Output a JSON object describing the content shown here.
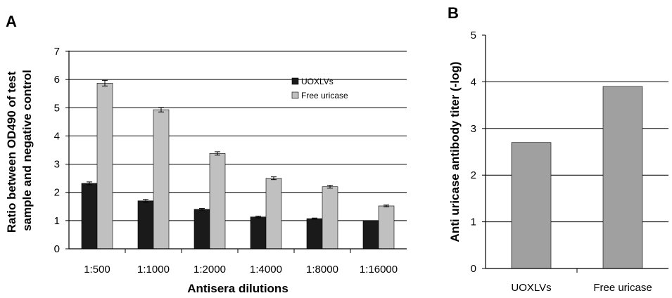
{
  "chart_data": [
    {
      "panel": "A",
      "type": "bar",
      "categories": [
        "1:500",
        "1:1000",
        "1:2000",
        "1:4000",
        "1:8000",
        "1:16000"
      ],
      "series": [
        {
          "name": "UOXLVs",
          "color": "#1a1a1a",
          "values": [
            2.32,
            1.7,
            1.4,
            1.13,
            1.07,
            1.0
          ],
          "errors": [
            0.05,
            0.05,
            0.03,
            0.03,
            0.02,
            0.0
          ]
        },
        {
          "name": "Free uricase",
          "color": "#c0c0c0",
          "values": [
            5.87,
            4.93,
            3.38,
            2.5,
            2.2,
            1.52
          ],
          "errors": [
            0.1,
            0.08,
            0.06,
            0.05,
            0.05,
            0.03
          ]
        }
      ],
      "xlabel": "Antisera dilutions",
      "ylabel": [
        "Ratio between OD490 of test",
        "sample and negative control"
      ],
      "ylim": [
        0,
        7
      ],
      "yticks": [
        "0",
        "1",
        "2",
        "3",
        "4",
        "5",
        "6",
        "7"
      ],
      "grid": true,
      "legend": "top-right"
    },
    {
      "panel": "B",
      "type": "bar",
      "categories": [
        "UOXLVs",
        "Free uricase"
      ],
      "values": [
        2.7,
        3.9
      ],
      "color": "#a0a0a0",
      "ylabel": "Anti uricase antibody titer (-log)",
      "ylim": [
        0,
        5
      ],
      "yticks": [
        "0",
        "1",
        "2",
        "3",
        "4",
        "5"
      ],
      "grid": true
    }
  ]
}
